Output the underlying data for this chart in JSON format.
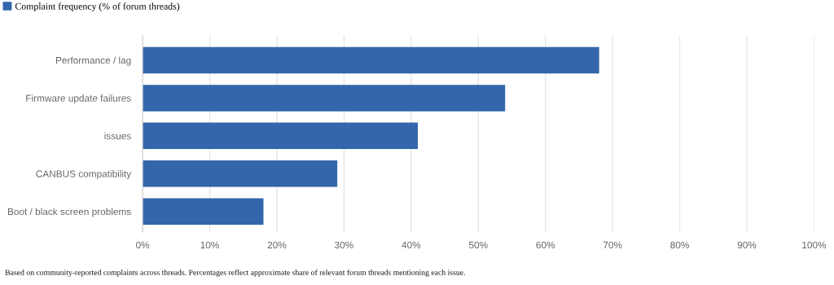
{
  "chart_data": {
    "type": "bar",
    "orientation": "horizontal",
    "categories": [
      "Performance / lag",
      "Firmware update failures",
      "issues",
      "CANBUS compatibility",
      "Boot / black screen problems"
    ],
    "series": [
      {
        "name": "Complaint frequency (% of forum threads)",
        "color": "#3366aa",
        "values": [
          68,
          54,
          41,
          29,
          18
        ]
      }
    ],
    "xlim": [
      0,
      100
    ],
    "xticks": [
      {
        "value": 0,
        "label": "0%"
      },
      {
        "value": 10,
        "label": "10%"
      },
      {
        "value": 20,
        "label": "20%"
      },
      {
        "value": 30,
        "label": "30%"
      },
      {
        "value": 40,
        "label": "40%"
      },
      {
        "value": 50,
        "label": "50%"
      },
      {
        "value": 60,
        "label": "60%"
      },
      {
        "value": 70,
        "label": "70%"
      },
      {
        "value": 80,
        "label": "80%"
      },
      {
        "value": 90,
        "label": "90%"
      },
      {
        "value": 100,
        "label": "100%"
      }
    ],
    "grid": "x",
    "legend": "top left",
    "annotations": [
      "Based on community-reported complaints across threads. Percentages reflect approximate share of relevant forum threads mentioning each issue."
    ]
  }
}
